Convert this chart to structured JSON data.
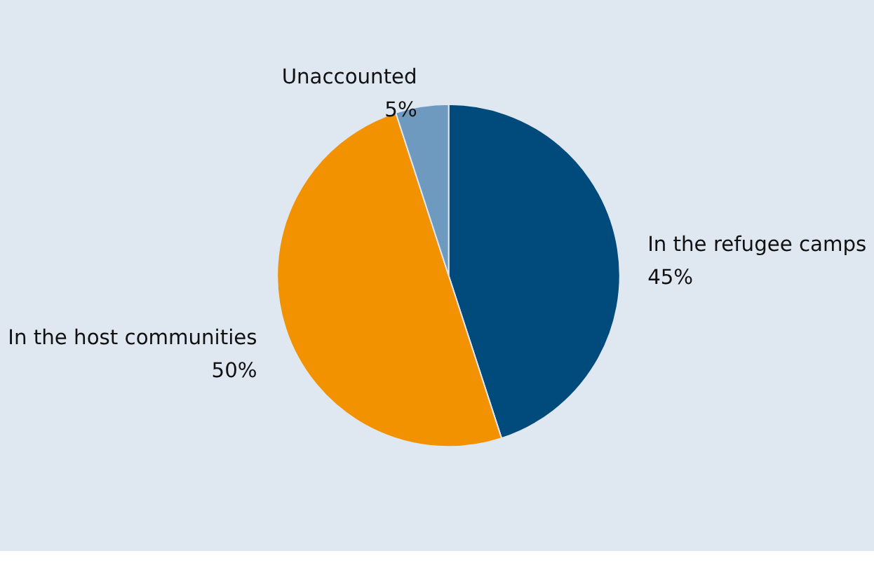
{
  "chart_data": {
    "type": "pie",
    "categories": [
      "In the refugee camps",
      "In the host communities",
      "Unaccounted"
    ],
    "values": [
      45,
      50,
      5
    ],
    "colors": [
      "#004a7c",
      "#f39200",
      "#6f9ac0"
    ],
    "value_labels": [
      "45%",
      "50%",
      "5%"
    ],
    "legend": false
  }
}
